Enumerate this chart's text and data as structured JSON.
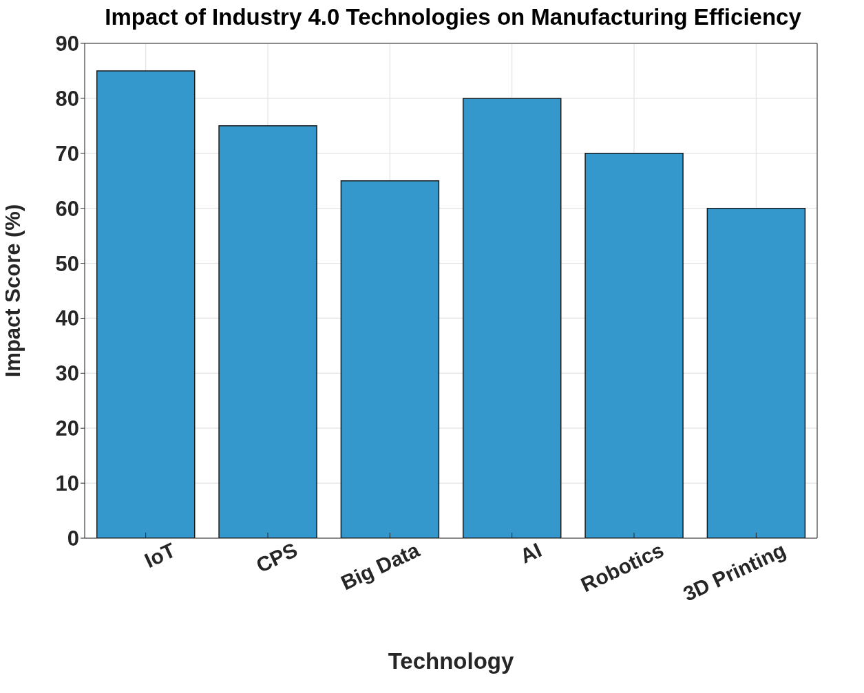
{
  "chart_data": {
    "type": "bar",
    "title": "Impact of Industry 4.0 Technologies on Manufacturing Efficiency",
    "xlabel": "Technology",
    "ylabel": "Impact Score (%)",
    "categories": [
      "IoT",
      "CPS",
      "Big Data",
      "AI",
      "Robotics",
      "3D Printing"
    ],
    "values": [
      85,
      75,
      65,
      80,
      70,
      60
    ],
    "color": "#3498cd",
    "ylim": [
      0,
      90
    ],
    "yticks": [
      0,
      10,
      20,
      30,
      40,
      50,
      60,
      70,
      80,
      90
    ],
    "grid": true
  }
}
